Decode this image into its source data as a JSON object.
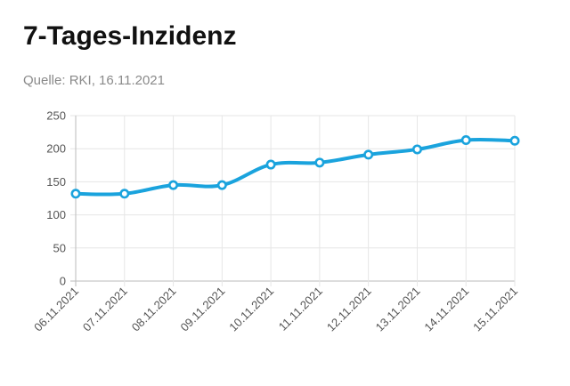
{
  "header": {
    "title": "7-Tages-Inzidenz",
    "source": "Quelle: RKI, 16.11.2021"
  },
  "colors": {
    "line": "#1aa3dd",
    "grid": "#e6e6e6",
    "axis": "#bbbbbb"
  },
  "chart_data": {
    "type": "line",
    "title": "7-Tages-Inzidenz",
    "categories": [
      "06.11.2021",
      "07.11.2021",
      "08.11.2021",
      "09.11.2021",
      "10.11.2021",
      "11.11.2021",
      "12.11.2021",
      "13.11.2021",
      "14.11.2021",
      "15.11.2021"
    ],
    "series": [
      {
        "values": [
          132,
          132,
          145,
          145,
          176,
          179,
          191,
          199,
          213,
          212
        ]
      }
    ],
    "ylim": [
      0,
      250
    ],
    "yticks": [
      0,
      50,
      100,
      150,
      200,
      250
    ],
    "grid": true,
    "legend": "none"
  }
}
